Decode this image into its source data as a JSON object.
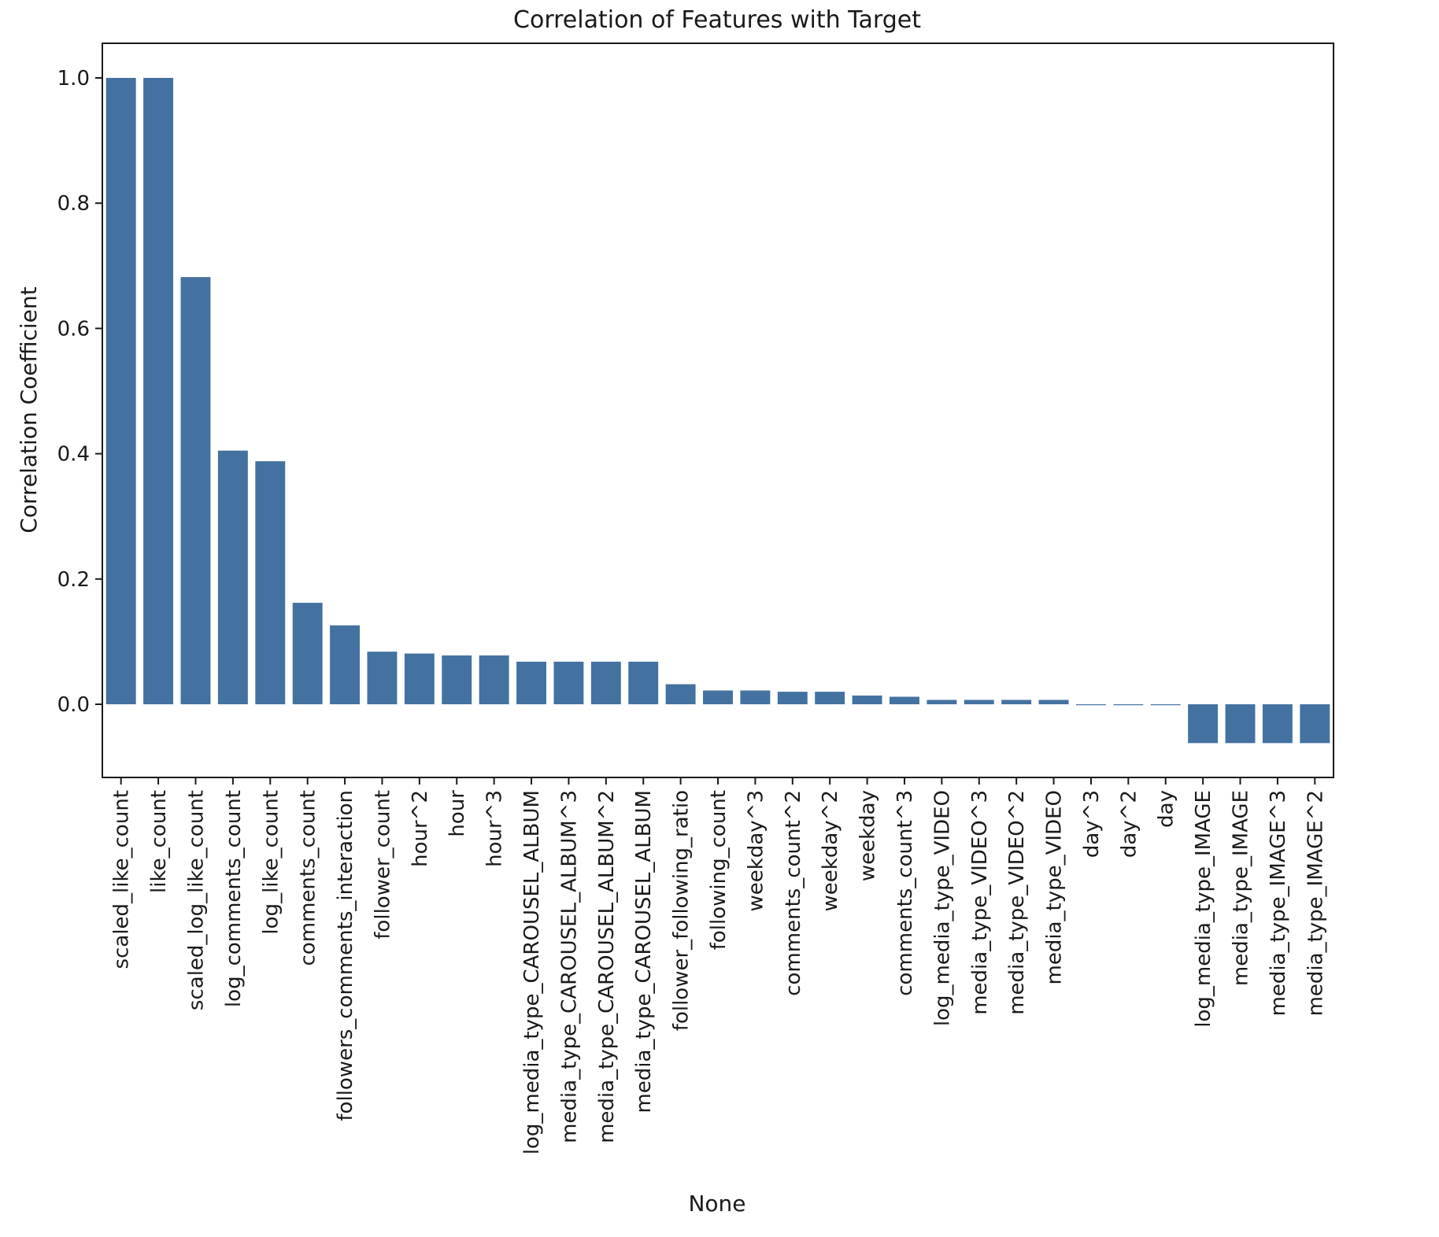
{
  "chart_data": {
    "type": "bar",
    "title": "Correlation of Features with Target",
    "xlabel": "None",
    "ylabel": "Correlation Coefficient",
    "ylim": [
      -0.117,
      1.056
    ],
    "yticks": [
      "1.0",
      "0.8",
      "0.6",
      "0.4",
      "0.2",
      "0.0"
    ],
    "ytick_values": [
      1.0,
      0.8,
      0.6,
      0.4,
      0.2,
      0.0
    ],
    "grid": false,
    "bar_color": "#4472a0",
    "categories": [
      "scaled_like_count",
      "like_count",
      "scaled_log_like_count",
      "log_comments_count",
      "log_like_count",
      "comments_count",
      "followers_comments_interaction",
      "follower_count",
      "hour^2",
      "hour",
      "hour^3",
      "log_media_type_CAROUSEL_ALBUM",
      "media_type_CAROUSEL_ALBUM^3",
      "media_type_CAROUSEL_ALBUM^2",
      "media_type_CAROUSEL_ALBUM",
      "follower_following_ratio",
      "following_count",
      "weekday^3",
      "comments_count^2",
      "weekday^2",
      "weekday",
      "comments_count^3",
      "log_media_type_VIDEO",
      "media_type_VIDEO^3",
      "media_type_VIDEO^2",
      "media_type_VIDEO",
      "day^3",
      "day^2",
      "day",
      "log_media_type_IMAGE",
      "media_type_IMAGE",
      "media_type_IMAGE^3",
      "media_type_IMAGE^2"
    ],
    "values": [
      1.0,
      1.0,
      0.682,
      0.405,
      0.388,
      0.162,
      0.126,
      0.084,
      0.081,
      0.078,
      0.078,
      0.068,
      0.068,
      0.068,
      0.068,
      0.032,
      0.022,
      0.022,
      0.02,
      0.02,
      0.014,
      0.012,
      0.007,
      0.007,
      0.007,
      0.007,
      -0.001,
      -0.001,
      -0.001,
      -0.062,
      -0.062,
      -0.062,
      -0.062
    ]
  }
}
